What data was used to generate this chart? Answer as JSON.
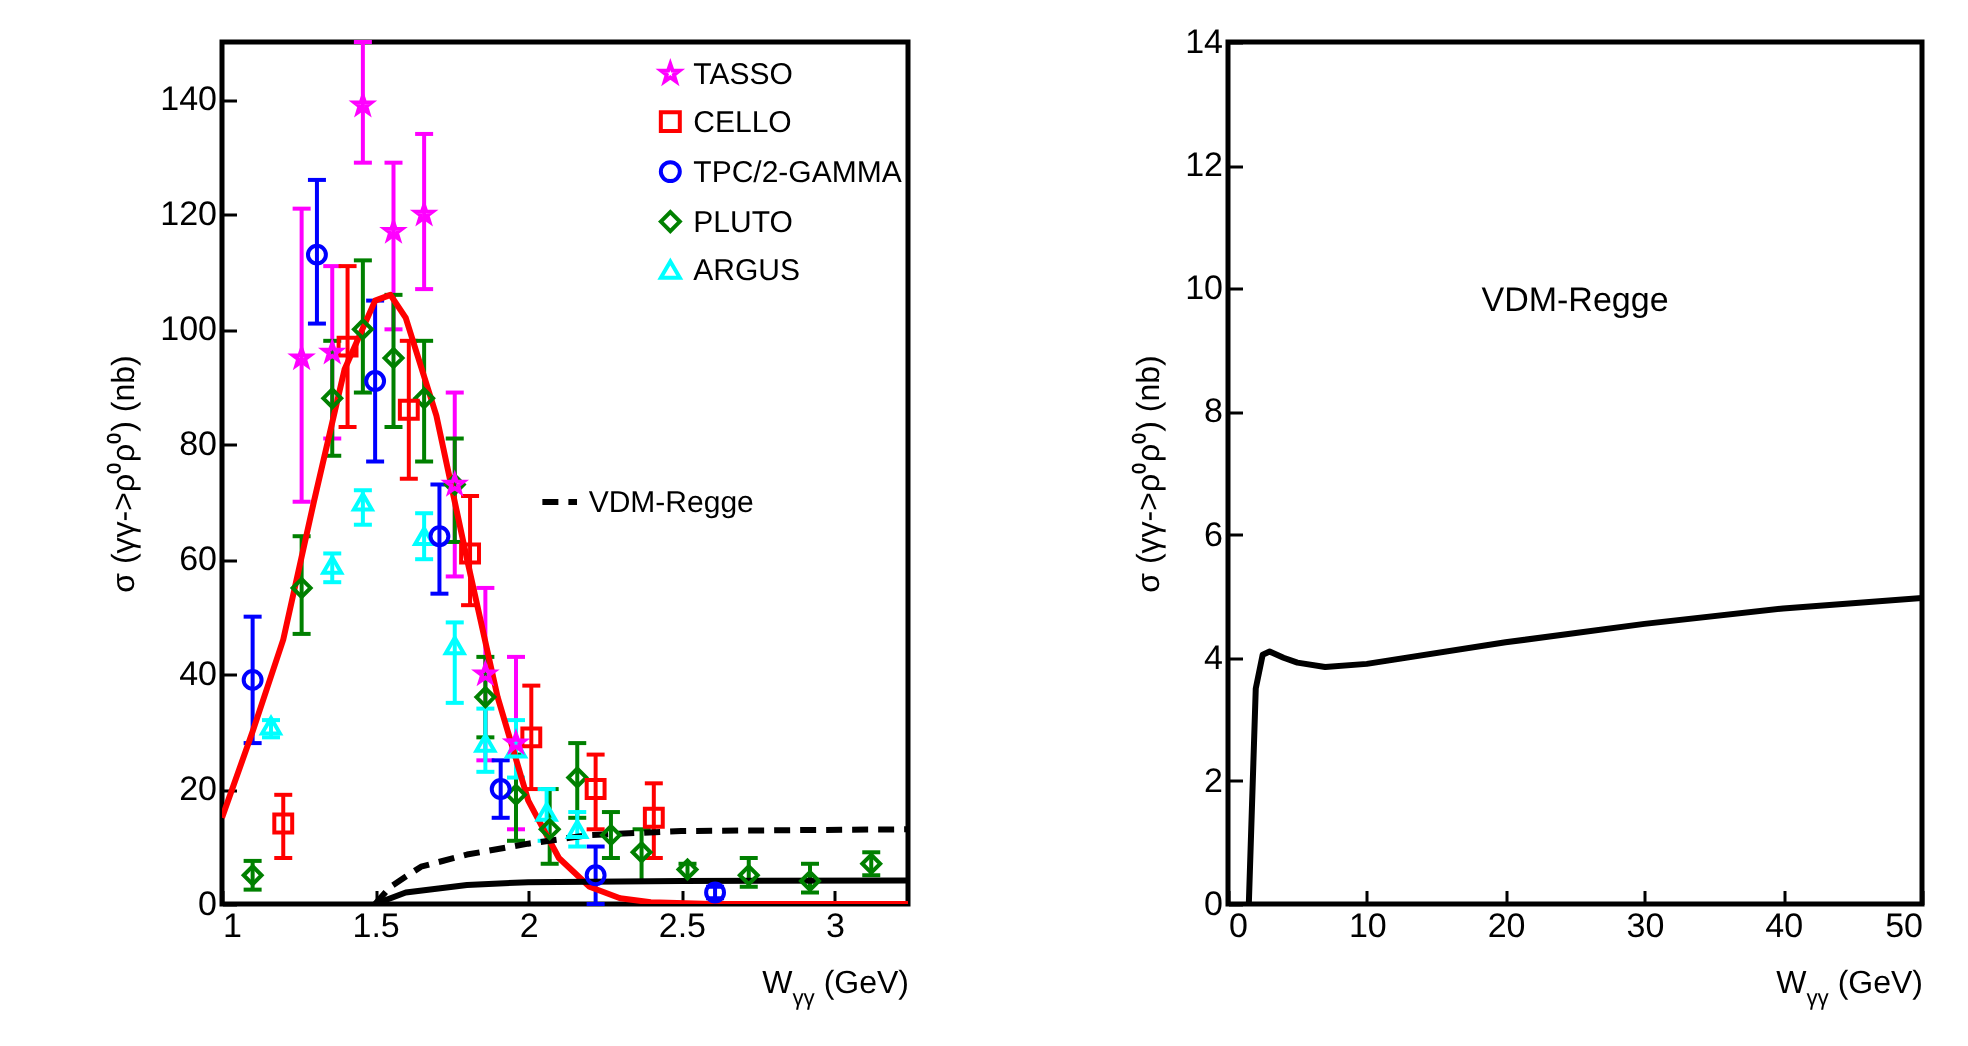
{
  "chart_data": [
    {
      "type": "scatter",
      "xlabel": "W$_{γγ}$ (GeV)",
      "ylabel": "σ (γγ->ρ⁰ρ⁰) (nb)",
      "xlim": [
        1,
        3.24
      ],
      "xticks": [
        1,
        1.5,
        2,
        2.5,
        3
      ],
      "ylim": [
        0,
        150
      ],
      "yticks": [
        0,
        20,
        40,
        60,
        80,
        100,
        120,
        140
      ],
      "legend": "top right",
      "series": [
        {
          "name": "TASSO",
          "color": "#ff00ff",
          "marker": "star",
          "x": [
            1.26,
            1.36,
            1.46,
            1.56,
            1.66,
            1.76,
            1.86,
            1.96
          ],
          "values": [
            95,
            96,
            139,
            117,
            120,
            73,
            40,
            28
          ],
          "errors": [
            [
              70,
              121
            ],
            [
              81,
              111
            ],
            [
              129,
              150
            ],
            [
              100,
              129
            ],
            [
              107,
              134
            ],
            [
              57,
              89
            ],
            [
              25,
              55
            ],
            [
              13,
              43
            ]
          ]
        },
        {
          "name": "CELLO",
          "color": "#ff0000",
          "marker": "square",
          "x": [
            1.2,
            1.41,
            1.61,
            1.81,
            2.01,
            2.22,
            2.41
          ],
          "values": [
            14,
            97,
            86,
            61,
            29,
            20,
            15
          ],
          "errors": [
            [
              8,
              19
            ],
            [
              83,
              111
            ],
            [
              74,
              98
            ],
            [
              52,
              71
            ],
            [
              20,
              38
            ],
            [
              13,
              26
            ],
            [
              8,
              21
            ]
          ]
        },
        {
          "name": "TPC/2-GAMMA",
          "color": "#0000ff",
          "marker": "circle",
          "x": [
            1.1,
            1.31,
            1.5,
            1.71,
            1.91,
            2.22,
            2.61
          ],
          "values": [
            39,
            113,
            91,
            64,
            20,
            5,
            2
          ],
          "errors": [
            [
              28,
              50
            ],
            [
              101,
              126
            ],
            [
              77,
              105
            ],
            [
              54,
              73
            ],
            [
              15,
              25
            ],
            [
              0,
              10
            ],
            [
              1,
              3
            ]
          ]
        },
        {
          "name": "PLUTO",
          "color": "#008000",
          "marker": "diamond",
          "x": [
            1.1,
            1.26,
            1.36,
            1.46,
            1.56,
            1.66,
            1.76,
            1.86,
            1.96,
            2.07,
            2.16,
            2.27,
            2.37,
            2.52,
            2.72,
            2.92,
            3.12
          ],
          "values": [
            5,
            55,
            88,
            100,
            95,
            88,
            73,
            36,
            19,
            13,
            22,
            12,
            9,
            6,
            5,
            4,
            7
          ],
          "errors": [
            [
              2.5,
              7.5
            ],
            [
              47,
              64
            ],
            [
              78,
              98
            ],
            [
              89,
              112
            ],
            [
              83,
              106
            ],
            [
              77,
              98
            ],
            [
              63,
              81
            ],
            [
              29,
              43
            ],
            [
              11,
              26
            ],
            [
              7,
              20
            ],
            [
              15,
              28
            ],
            [
              8,
              16
            ],
            [
              4,
              13
            ],
            [
              4,
              7
            ],
            [
              3,
              8
            ],
            [
              2,
              7
            ],
            [
              5,
              9
            ]
          ]
        },
        {
          "name": "ARGUS",
          "color": "#00ffff",
          "marker": "triangle",
          "x": [
            1.16,
            1.36,
            1.46,
            1.66,
            1.76,
            1.86,
            1.96,
            2.06,
            2.16
          ],
          "values": [
            31,
            59,
            70,
            64,
            45,
            28,
            27,
            16,
            13
          ],
          "errors": [
            [
              29,
              32
            ],
            [
              56,
              61
            ],
            [
              66,
              72
            ],
            [
              60,
              68
            ],
            [
              35,
              49
            ],
            [
              23,
              34
            ],
            [
              22,
              32
            ],
            [
              11,
              20
            ],
            [
              10,
              16
            ]
          ]
        },
        {
          "type": "line",
          "color": "#ff0000",
          "line_style": "solid",
          "x": [
            1,
            1.1,
            1.2,
            1.3,
            1.4,
            1.5,
            1.55,
            1.6,
            1.7,
            1.8,
            1.9,
            2,
            2.1,
            2.2,
            2.3,
            2.4,
            2.6,
            3.24
          ],
          "values": [
            15,
            30,
            46,
            70,
            93,
            105,
            106,
            102,
            85,
            60,
            36,
            18,
            8,
            3,
            1,
            0.3,
            0,
            0
          ]
        },
        {
          "name": "VDM-Regge",
          "type": "line",
          "color": "#000000",
          "line_style": "dashed",
          "x": [
            1.5,
            1.55,
            1.65,
            1.8,
            2,
            2.2,
            2.5,
            3.24
          ],
          "values": [
            0,
            3,
            6.5,
            8.6,
            10.5,
            12,
            12.7,
            13
          ]
        },
        {
          "type": "line",
          "color": "#000000",
          "line_style": "solid",
          "x": [
            1.5,
            1.6,
            1.8,
            2,
            2.5,
            3.24
          ],
          "values": [
            0,
            2,
            3.3,
            3.8,
            4,
            4.1
          ]
        }
      ]
    },
    {
      "type": "line",
      "xlabel": "W$_{γγ}$ (GeV)",
      "ylabel": "σ (γγ->ρ⁰ρ⁰) (nb)",
      "xlim": [
        0,
        50
      ],
      "xticks": [
        0,
        10,
        20,
        30,
        40,
        50
      ],
      "ylim": [
        0,
        14
      ],
      "yticks": [
        0,
        2,
        4,
        6,
        8,
        10,
        12,
        14
      ],
      "annotations": [
        "VDM-Regge"
      ],
      "series": [
        {
          "color": "#000000",
          "line_style": "solid",
          "x": [
            1.5,
            2,
            2.5,
            3,
            4,
            5,
            7,
            10,
            20,
            30,
            40,
            50
          ],
          "values": [
            0,
            3.5,
            4.05,
            4.1,
            4,
            3.92,
            3.85,
            3.9,
            4.25,
            4.55,
            4.8,
            4.97
          ]
        }
      ]
    }
  ]
}
